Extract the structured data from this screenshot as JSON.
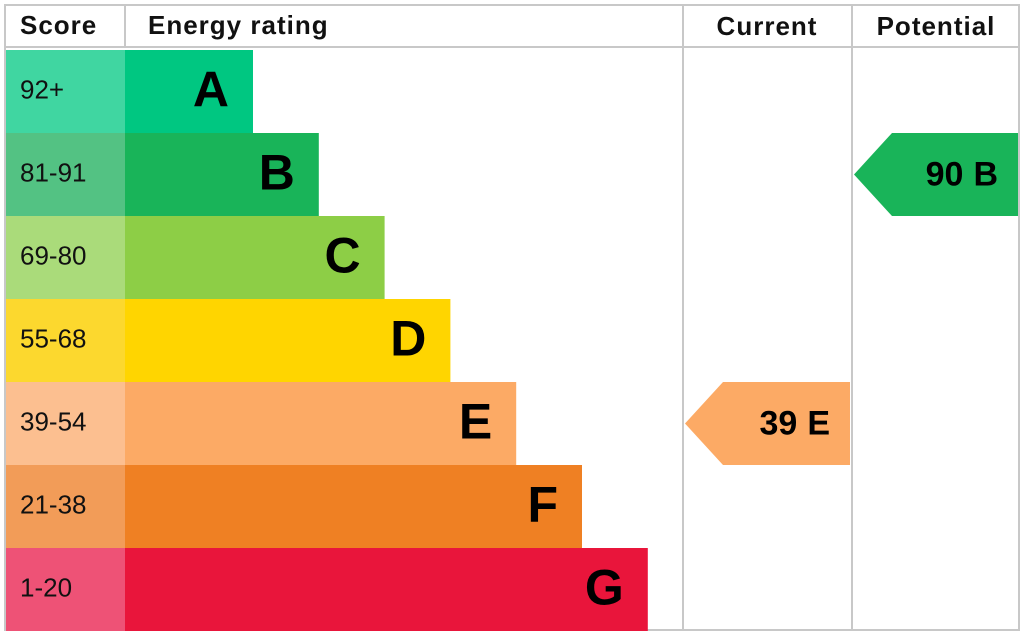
{
  "chart_data": {
    "type": "epc",
    "headers": {
      "score": "Score",
      "rating": "Energy rating",
      "current": "Current",
      "potential": "Potential"
    },
    "bands": [
      {
        "score": "92+",
        "letter": "A",
        "color": "#00c781",
        "score_color": "#40d6a1"
      },
      {
        "score": "81-91",
        "letter": "B",
        "color": "#19b459",
        "score_color": "#53c283"
      },
      {
        "score": "69-80",
        "letter": "C",
        "color": "#8dce46",
        "score_color": "#aadb7a"
      },
      {
        "score": "55-68",
        "letter": "D",
        "color": "#ffd500",
        "score_color": "#fcd82e"
      },
      {
        "score": "39-54",
        "letter": "E",
        "color": "#fcaa65",
        "score_color": "#fcbf90"
      },
      {
        "score": "21-38",
        "letter": "F",
        "color": "#ef8023",
        "score_color": "#f29c58"
      },
      {
        "score": "1-20",
        "letter": "G",
        "color": "#e9153b",
        "score_color": "#ee5276"
      }
    ],
    "current": {
      "value": 39,
      "letter": "E"
    },
    "potential": {
      "value": 90,
      "letter": "B"
    }
  }
}
